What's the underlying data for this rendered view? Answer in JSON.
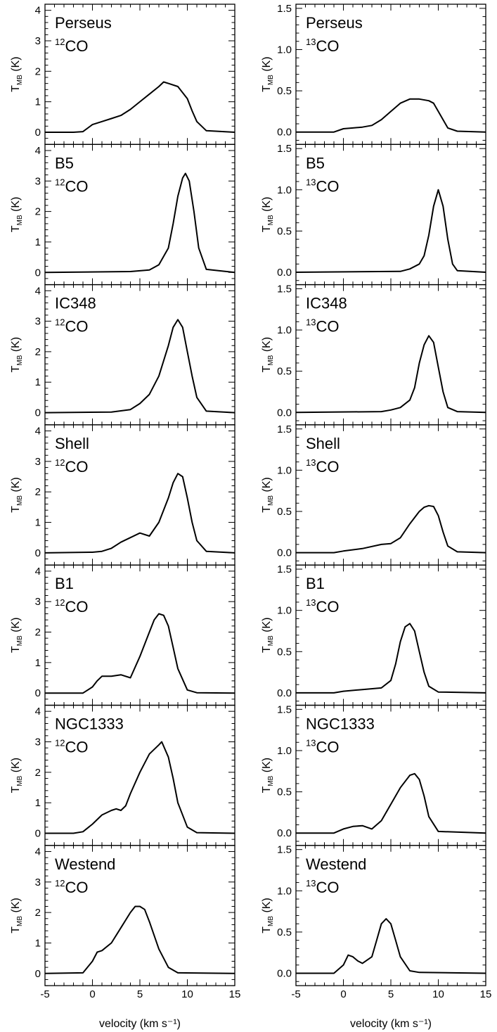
{
  "figure": {
    "xlabel": "velocity (km s⁻¹)",
    "ylabel_main": "T",
    "ylabel_sub": "MB",
    "ylabel_unit": " (K)"
  },
  "chart_data": [
    {
      "type": "line",
      "column": "left",
      "region": "Perseus",
      "line_label": "CO",
      "isotope": "12",
      "xlim": [
        -5,
        15
      ],
      "ylim": [
        -0.4,
        4.2
      ],
      "xticks": [
        -5,
        0,
        5,
        10,
        15
      ],
      "yticks": [
        0,
        1,
        2,
        3,
        4
      ],
      "x": [
        -5,
        -2,
        -1,
        0,
        1,
        2,
        3,
        4,
        5,
        6,
        7,
        7.5,
        8,
        9,
        10,
        10.5,
        11,
        12,
        15
      ],
      "y": [
        0,
        0,
        0.02,
        0.25,
        0.35,
        0.45,
        0.55,
        0.75,
        1.0,
        1.25,
        1.5,
        1.65,
        1.6,
        1.5,
        1.1,
        0.7,
        0.35,
        0.05,
        0
      ]
    },
    {
      "type": "line",
      "column": "right",
      "region": "Perseus",
      "line_label": "CO",
      "isotope": "13",
      "xlim": [
        -5,
        15
      ],
      "ylim": [
        -0.15,
        1.55
      ],
      "xticks": [
        -5,
        0,
        5,
        10,
        15
      ],
      "yticks": [
        0.0,
        0.5,
        1.0,
        1.5
      ],
      "x": [
        -5,
        -1,
        0,
        1,
        2,
        3,
        4,
        5,
        6,
        7,
        8,
        9,
        9.5,
        10,
        11,
        12,
        15
      ],
      "y": [
        0,
        0,
        0.04,
        0.05,
        0.06,
        0.08,
        0.15,
        0.25,
        0.35,
        0.4,
        0.4,
        0.38,
        0.35,
        0.25,
        0.05,
        0.01,
        0
      ]
    },
    {
      "type": "line",
      "column": "left",
      "region": "B5",
      "line_label": "CO",
      "isotope": "12",
      "xlim": [
        -5,
        15
      ],
      "ylim": [
        -0.4,
        4.2
      ],
      "xticks": [
        -5,
        0,
        5,
        10,
        15
      ],
      "yticks": [
        0,
        1,
        2,
        3,
        4
      ],
      "x": [
        -5,
        4,
        6,
        7,
        8,
        8.5,
        9,
        9.5,
        9.8,
        10.2,
        10.7,
        11.2,
        12,
        15
      ],
      "y": [
        0,
        0.03,
        0.08,
        0.25,
        0.8,
        1.6,
        2.5,
        3.1,
        3.25,
        3.0,
        2.0,
        0.8,
        0.1,
        0
      ]
    },
    {
      "type": "line",
      "column": "right",
      "region": "B5",
      "line_label": "CO",
      "isotope": "13",
      "xlim": [
        -5,
        15
      ],
      "ylim": [
        -0.15,
        1.55
      ],
      "xticks": [
        -5,
        0,
        5,
        10,
        15
      ],
      "yticks": [
        0.0,
        0.5,
        1.0,
        1.5
      ],
      "x": [
        -5,
        6,
        7,
        8,
        8.5,
        9,
        9.5,
        10,
        10.5,
        11,
        11.5,
        12,
        15
      ],
      "y": [
        0,
        0.01,
        0.04,
        0.1,
        0.2,
        0.45,
        0.8,
        1.0,
        0.8,
        0.4,
        0.1,
        0.02,
        0
      ]
    },
    {
      "type": "line",
      "column": "left",
      "region": "IC348",
      "line_label": "CO",
      "isotope": "12",
      "xlim": [
        -5,
        15
      ],
      "ylim": [
        -0.4,
        4.2
      ],
      "xticks": [
        -5,
        0,
        5,
        10,
        15
      ],
      "yticks": [
        0,
        1,
        2,
        3,
        4
      ],
      "x": [
        -5,
        2,
        4,
        5,
        6,
        7,
        8,
        8.5,
        9,
        9.5,
        10,
        10.5,
        11,
        12,
        15
      ],
      "y": [
        0,
        0.02,
        0.1,
        0.3,
        0.6,
        1.2,
        2.2,
        2.8,
        3.05,
        2.8,
        2.0,
        1.2,
        0.5,
        0.05,
        0
      ]
    },
    {
      "type": "line",
      "column": "right",
      "region": "IC348",
      "line_label": "CO",
      "isotope": "13",
      "xlim": [
        -5,
        15
      ],
      "ylim": [
        -0.15,
        1.55
      ],
      "xticks": [
        -5,
        0,
        5,
        10,
        15
      ],
      "yticks": [
        0.0,
        0.5,
        1.0,
        1.5
      ],
      "x": [
        -5,
        4,
        5,
        6,
        7,
        7.5,
        8,
        8.5,
        9,
        9.5,
        10,
        10.5,
        11,
        12,
        15
      ],
      "y": [
        0,
        0.01,
        0.03,
        0.06,
        0.15,
        0.3,
        0.6,
        0.82,
        0.93,
        0.85,
        0.55,
        0.25,
        0.06,
        0.01,
        0
      ]
    },
    {
      "type": "line",
      "column": "left",
      "region": "Shell",
      "line_label": "CO",
      "isotope": "12",
      "xlim": [
        -5,
        15
      ],
      "ylim": [
        -0.4,
        4.2
      ],
      "xticks": [
        -5,
        0,
        5,
        10,
        15
      ],
      "yticks": [
        0,
        1,
        2,
        3,
        4
      ],
      "x": [
        -5,
        0,
        1,
        2,
        3,
        4,
        5,
        6,
        7,
        8,
        8.5,
        9,
        9.5,
        10,
        10.5,
        11,
        12,
        15
      ],
      "y": [
        0,
        0.02,
        0.05,
        0.15,
        0.35,
        0.5,
        0.65,
        0.55,
        1.0,
        1.8,
        2.3,
        2.6,
        2.5,
        1.8,
        1.0,
        0.4,
        0.05,
        0
      ]
    },
    {
      "type": "line",
      "column": "right",
      "region": "Shell",
      "line_label": "CO",
      "isotope": "13",
      "xlim": [
        -5,
        15
      ],
      "ylim": [
        -0.15,
        1.55
      ],
      "xticks": [
        -5,
        0,
        5,
        10,
        15
      ],
      "yticks": [
        0.0,
        0.5,
        1.0,
        1.5
      ],
      "x": [
        -5,
        -1,
        0,
        2,
        4,
        5,
        6,
        7,
        8,
        8.5,
        9,
        9.5,
        10,
        10.5,
        11,
        12,
        15
      ],
      "y": [
        0,
        0,
        0.02,
        0.05,
        0.1,
        0.11,
        0.18,
        0.35,
        0.5,
        0.55,
        0.57,
        0.56,
        0.45,
        0.25,
        0.08,
        0.01,
        0
      ]
    },
    {
      "type": "line",
      "column": "left",
      "region": "B1",
      "line_label": "CO",
      "isotope": "12",
      "xlim": [
        -5,
        15
      ],
      "ylim": [
        -0.4,
        4.2
      ],
      "xticks": [
        -5,
        0,
        5,
        10,
        15
      ],
      "yticks": [
        0,
        1,
        2,
        3,
        4
      ],
      "x": [
        -5,
        -1,
        0,
        0.5,
        1,
        2,
        3,
        4,
        5,
        6,
        6.5,
        7,
        7.5,
        8,
        8.5,
        9,
        10,
        11,
        15
      ],
      "y": [
        0,
        0,
        0.2,
        0.4,
        0.55,
        0.55,
        0.6,
        0.5,
        1.2,
        2.0,
        2.4,
        2.6,
        2.55,
        2.2,
        1.5,
        0.8,
        0.1,
        0.01,
        0
      ]
    },
    {
      "type": "line",
      "column": "right",
      "region": "B1",
      "line_label": "CO",
      "isotope": "13",
      "xlim": [
        -5,
        15
      ],
      "ylim": [
        -0.15,
        1.55
      ],
      "xticks": [
        -5,
        0,
        5,
        10,
        15
      ],
      "yticks": [
        0.0,
        0.5,
        1.0,
        1.5
      ],
      "x": [
        -5,
        -1,
        0,
        2,
        4,
        5,
        5.5,
        6,
        6.5,
        7,
        7.5,
        8,
        8.5,
        9,
        10,
        15
      ],
      "y": [
        0,
        0,
        0.02,
        0.04,
        0.06,
        0.15,
        0.35,
        0.62,
        0.8,
        0.84,
        0.75,
        0.5,
        0.25,
        0.08,
        0.01,
        0
      ]
    },
    {
      "type": "line",
      "column": "left",
      "region": "NGC1333",
      "line_label": "CO",
      "isotope": "12",
      "xlim": [
        -5,
        15
      ],
      "ylim": [
        -0.4,
        4.2
      ],
      "xticks": [
        -5,
        0,
        5,
        10,
        15
      ],
      "yticks": [
        0,
        1,
        2,
        3,
        4
      ],
      "x": [
        -5,
        -2,
        -1,
        0,
        1,
        2,
        2.5,
        3,
        3.5,
        4,
        5,
        6,
        7,
        7.3,
        8,
        8.5,
        9,
        10,
        11,
        15
      ],
      "y": [
        0,
        0,
        0.05,
        0.3,
        0.6,
        0.75,
        0.8,
        0.75,
        0.9,
        1.3,
        2.0,
        2.6,
        2.9,
        3.0,
        2.5,
        1.8,
        1.0,
        0.2,
        0.02,
        0
      ]
    },
    {
      "type": "line",
      "column": "right",
      "region": "NGC1333",
      "line_label": "CO",
      "isotope": "13",
      "xlim": [
        -5,
        15
      ],
      "ylim": [
        -0.15,
        1.55
      ],
      "xticks": [
        -5,
        0,
        5,
        10,
        15
      ],
      "yticks": [
        0.0,
        0.5,
        1.0,
        1.5
      ],
      "x": [
        -5,
        -1,
        0,
        1,
        2,
        3,
        4,
        5,
        6,
        7,
        7.5,
        8,
        8.5,
        9,
        10,
        15
      ],
      "y": [
        0,
        0,
        0.05,
        0.08,
        0.09,
        0.05,
        0.15,
        0.35,
        0.55,
        0.7,
        0.72,
        0.65,
        0.45,
        0.2,
        0.02,
        0
      ]
    },
    {
      "type": "line",
      "column": "left",
      "region": "Westend",
      "line_label": "CO",
      "isotope": "12",
      "xlim": [
        -5,
        15
      ],
      "ylim": [
        -0.4,
        4.2
      ],
      "xticks": [
        -5,
        0,
        5,
        10,
        15
      ],
      "yticks": [
        0,
        1,
        2,
        3,
        4
      ],
      "x": [
        -5,
        -1,
        0,
        0.5,
        1,
        2,
        3,
        4,
        4.5,
        5,
        5.5,
        6,
        7,
        8,
        9,
        15
      ],
      "y": [
        0,
        0.02,
        0.4,
        0.7,
        0.75,
        1.0,
        1.5,
        2.0,
        2.2,
        2.2,
        2.1,
        1.7,
        0.8,
        0.2,
        0.02,
        0
      ]
    },
    {
      "type": "line",
      "column": "right",
      "region": "Westend",
      "line_label": "CO",
      "isotope": "13",
      "xlim": [
        -5,
        15
      ],
      "ylim": [
        -0.15,
        1.55
      ],
      "xticks": [
        -5,
        0,
        5,
        10,
        15
      ],
      "yticks": [
        0.0,
        0.5,
        1.0,
        1.5
      ],
      "x": [
        -5,
        -1,
        0,
        0.5,
        1,
        1.5,
        2,
        3,
        3.5,
        4,
        4.5,
        5,
        5.5,
        6,
        7,
        8,
        15
      ],
      "y": [
        0,
        0,
        0.1,
        0.22,
        0.2,
        0.15,
        0.12,
        0.2,
        0.4,
        0.6,
        0.66,
        0.6,
        0.4,
        0.2,
        0.03,
        0.01,
        0
      ]
    }
  ]
}
